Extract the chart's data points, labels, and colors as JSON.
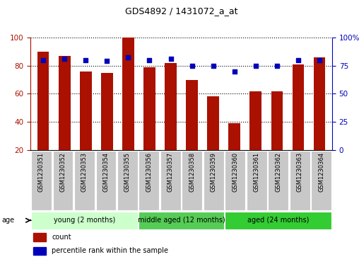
{
  "title": "GDS4892 / 1431072_a_at",
  "samples": [
    "GSM1230351",
    "GSM1230352",
    "GSM1230353",
    "GSM1230354",
    "GSM1230355",
    "GSM1230356",
    "GSM1230357",
    "GSM1230358",
    "GSM1230359",
    "GSM1230360",
    "GSM1230361",
    "GSM1230362",
    "GSM1230363",
    "GSM1230364"
  ],
  "counts": [
    90,
    87,
    76,
    75,
    100,
    79,
    82,
    70,
    58,
    39,
    62,
    62,
    81,
    86
  ],
  "percentiles": [
    80,
    81,
    80,
    79,
    82,
    80,
    81,
    75,
    75,
    70,
    75,
    75,
    80,
    80
  ],
  "ylim_left": [
    20,
    100
  ],
  "ylim_right": [
    0,
    100
  ],
  "yticks_left": [
    20,
    40,
    60,
    80,
    100
  ],
  "ytick_labels_right": [
    "0",
    "25",
    "50",
    "75",
    "100%"
  ],
  "yticks_right": [
    0,
    25,
    50,
    75,
    100
  ],
  "bar_color": "#aa1100",
  "dot_color": "#0000bb",
  "bar_width": 0.55,
  "groups": [
    {
      "label": "young (2 months)",
      "start": 0,
      "end": 5,
      "color": "#ccffcc"
    },
    {
      "label": "middle aged (12 months)",
      "start": 5,
      "end": 9,
      "color": "#55cc55"
    },
    {
      "label": "aged (24 months)",
      "start": 9,
      "end": 14,
      "color": "#33cc33"
    }
  ],
  "age_label": "age",
  "legend_count_label": "count",
  "legend_percentile_label": "percentile rank within the sample",
  "grid_linestyle": "dotted",
  "tick_bg_color": "#c8c8c8",
  "title_fontsize": 9,
  "axis_fontsize": 7.5,
  "label_fontsize": 6,
  "group_fontsize": 7,
  "legend_fontsize": 7
}
